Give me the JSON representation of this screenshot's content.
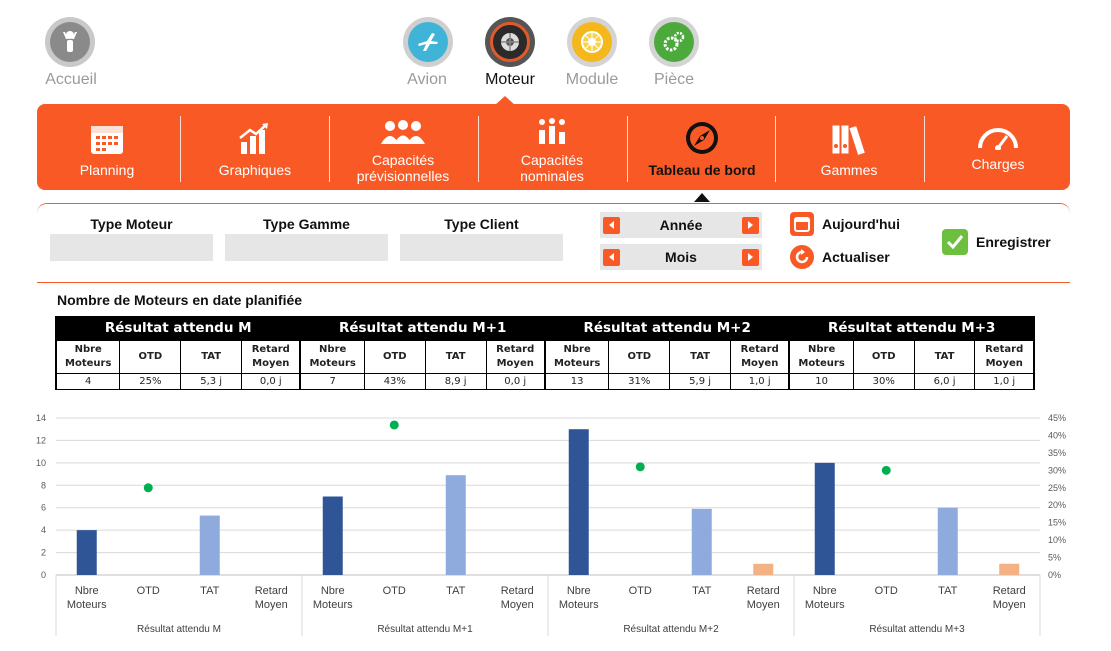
{
  "home": {
    "label": "Accueil"
  },
  "top_nav": [
    {
      "label": "Avion",
      "icon": "plane-icon",
      "active": false
    },
    {
      "label": "Moteur",
      "icon": "engine-icon",
      "active": true
    },
    {
      "label": "Module",
      "icon": "module-icon",
      "active": false
    },
    {
      "label": "Pièce",
      "icon": "gears-icon",
      "active": false
    }
  ],
  "menu": [
    {
      "label": "Planning",
      "icon": "calendar-icon"
    },
    {
      "label": "Graphiques",
      "icon": "bar-chart-icon"
    },
    {
      "label": "Capacités prévisionnelles",
      "icon": "people-icon"
    },
    {
      "label": "Capacités nominales",
      "icon": "people-chart-icon"
    },
    {
      "label": "Tableau de bord",
      "icon": "compass-icon",
      "active": true
    },
    {
      "label": "Gammes",
      "icon": "binders-icon"
    },
    {
      "label": "Charges",
      "icon": "gauge-icon"
    }
  ],
  "filters": {
    "type_moteur": "Type Moteur",
    "type_gamme": "Type Gamme",
    "type_client": "Type Client",
    "annee": "Année",
    "mois": "Mois",
    "aujourdhui": "Aujourd'hui",
    "actualiser": "Actualiser",
    "enregistrer": "Enregistrer"
  },
  "table": {
    "title": "Nombre de Moteurs en date planifiée",
    "columns": [
      "Nbre Moteurs",
      "OTD",
      "TAT",
      "Retard Moyen"
    ],
    "groups": [
      {
        "title": "Résultat attendu M",
        "values": [
          "4",
          "25%",
          "5,3 j",
          "0,0 j"
        ]
      },
      {
        "title": "Résultat attendu M+1",
        "values": [
          "7",
          "43%",
          "8,9 j",
          "0,0 j"
        ]
      },
      {
        "title": "Résultat attendu M+2",
        "values": [
          "13",
          "31%",
          "5,9 j",
          "1,0 j"
        ]
      },
      {
        "title": "Résultat attendu M+3",
        "values": [
          "10",
          "30%",
          "6,0 j",
          "1,0 j"
        ]
      }
    ]
  },
  "colors": {
    "orange": "#f95a25",
    "nbre": "#2f5597",
    "tat": "#8faadc",
    "retard": "#f4b183",
    "otd": "#00b050"
  },
  "chart_data": {
    "type": "bar",
    "groups": [
      "Résultat attendu M",
      "Résultat attendu M+1",
      "Résultat attendu M+2",
      "Résultat attendu M+3"
    ],
    "categories": [
      "Nbre Moteurs",
      "OTD",
      "TAT",
      "Retard Moyen"
    ],
    "series": [
      {
        "values": [
          4,
          7,
          13,
          10
        ],
        "axis": "left",
        "category": "Nbre Moteurs",
        "color": "#2f5597"
      },
      {
        "values": [
          25,
          43,
          31,
          30
        ],
        "axis": "right",
        "category": "OTD",
        "marker": "dot",
        "color": "#00b050"
      },
      {
        "values": [
          5.3,
          8.9,
          5.9,
          6.0
        ],
        "axis": "left",
        "category": "TAT",
        "color": "#8faadc"
      },
      {
        "values": [
          0.0,
          0.0,
          1.0,
          1.0
        ],
        "axis": "left",
        "category": "Retard Moyen",
        "color": "#f4b183"
      }
    ],
    "ylim": [
      0,
      14
    ],
    "yticks": [
      0,
      2,
      4,
      6,
      8,
      10,
      12,
      14
    ],
    "y2lim": [
      0,
      45
    ],
    "y2ticks": [
      "0%",
      "5%",
      "10%",
      "15%",
      "20%",
      "25%",
      "30%",
      "35%",
      "40%",
      "45%"
    ],
    "grid": true,
    "legend": "none"
  }
}
